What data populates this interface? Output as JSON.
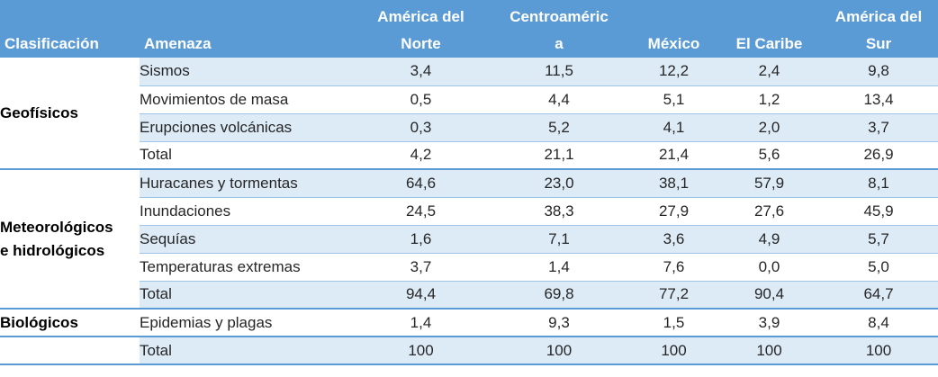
{
  "headers": {
    "clasificacion": "Clasificación",
    "amenaza": "Amenaza",
    "col_ana_1": "América del",
    "col_ana_2": "Norte",
    "col_ca_1": "Centroaméric",
    "col_ca_2": "a",
    "col_mex": "México",
    "col_car": "El Caribe",
    "col_ams_1": "América del",
    "col_ams_2": "Sur"
  },
  "groups": {
    "geofisicos": {
      "label": "Geofísicos"
    },
    "meteo": {
      "label_1": "Meteorológicos",
      "label_2": "e hidrológicos"
    },
    "biologicos": {
      "label": "Biológicos"
    }
  },
  "rows": [
    {
      "amenaza": "Sismos",
      "values": [
        "3,4",
        "11,5",
        "12,2",
        "2,4",
        "9,8"
      ]
    },
    {
      "amenaza": "Movimientos  de masa",
      "values": [
        "0,5",
        "4,4",
        "5,1",
        "1,2",
        "13,4"
      ]
    },
    {
      "amenaza": "Erupciones volcánicas",
      "values": [
        "0,3",
        "5,2",
        "4,1",
        "2,0",
        "3,7"
      ]
    },
    {
      "amenaza": "Total",
      "values": [
        "4,2",
        "21,1",
        "21,4",
        "5,6",
        "26,9"
      ]
    },
    {
      "amenaza": "Huracanes y tormentas",
      "values": [
        "64,6",
        "23,0",
        "38,1",
        "57,9",
        "8,1"
      ]
    },
    {
      "amenaza": "Inundaciones",
      "values": [
        "24,5",
        "38,3",
        "27,9",
        "27,6",
        "45,9"
      ]
    },
    {
      "amenaza": "Sequías",
      "values": [
        "1,6",
        "7,1",
        "3,6",
        "4,9",
        "5,7"
      ]
    },
    {
      "amenaza": "Temperaturas  extremas",
      "values": [
        "3,7",
        "1,4",
        "7,6",
        "0,0",
        "5,0"
      ]
    },
    {
      "amenaza": "Total",
      "values": [
        "94,4",
        "69,8",
        "77,2",
        "90,4",
        "64,7"
      ]
    },
    {
      "amenaza": "Epidemias y plagas",
      "values": [
        "1,4",
        "9,3",
        "1,5",
        "3,9",
        "8,4"
      ]
    },
    {
      "amenaza": "Total",
      "values": [
        "100",
        "100",
        "100",
        "100",
        "100"
      ]
    }
  ]
}
